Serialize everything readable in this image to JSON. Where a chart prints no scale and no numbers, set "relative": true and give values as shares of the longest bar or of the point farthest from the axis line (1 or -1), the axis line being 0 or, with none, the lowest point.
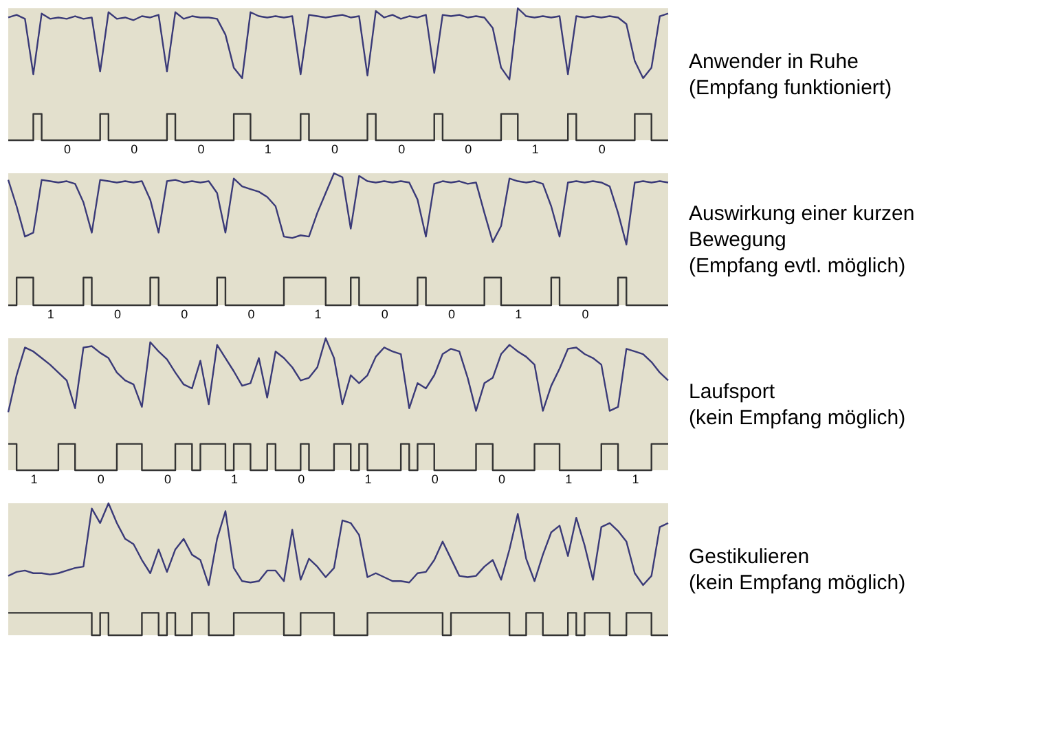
{
  "chart_data": [
    {
      "type": "line",
      "relative": true,
      "annotations": [
        "Anwender in Ruhe",
        "(Empfang funktioniert)"
      ],
      "categories": [
        null,
        null,
        null,
        null,
        null,
        null,
        null,
        "0",
        null,
        null,
        null,
        null,
        null,
        null,
        null,
        "0",
        null,
        null,
        null,
        null,
        null,
        null,
        null,
        "0",
        null,
        null,
        null,
        null,
        null,
        null,
        null,
        "1",
        null,
        null,
        null,
        null,
        null,
        null,
        null,
        "0",
        null,
        null,
        null,
        null,
        null,
        null,
        null,
        "0",
        null,
        null,
        null,
        null,
        null,
        null,
        null,
        "0",
        null,
        null,
        null,
        null,
        null,
        null,
        null,
        "1",
        null,
        null,
        null,
        null,
        null,
        null,
        null,
        "0",
        null,
        null,
        null,
        null,
        null,
        null,
        null,
        null
      ],
      "series": [
        {
          "color": "#3a3a78",
          "values": [
            0.93,
            0.95,
            0.92,
            0.5,
            0.96,
            0.92,
            0.93,
            0.92,
            0.94,
            0.92,
            0.93,
            0.52,
            0.97,
            0.92,
            0.93,
            0.91,
            0.94,
            0.93,
            0.95,
            0.52,
            0.97,
            0.92,
            0.94,
            0.93,
            0.93,
            0.92,
            0.8,
            0.55,
            0.47,
            0.97,
            0.94,
            0.93,
            0.94,
            0.93,
            0.94,
            0.5,
            0.95,
            0.94,
            0.93,
            0.94,
            0.95,
            0.93,
            0.94,
            0.49,
            0.98,
            0.93,
            0.95,
            0.92,
            0.94,
            0.93,
            0.95,
            0.51,
            0.95,
            0.94,
            0.95,
            0.93,
            0.94,
            0.93,
            0.85,
            0.55,
            0.46,
            1.0,
            0.94,
            0.93,
            0.94,
            0.93,
            0.94,
            0.5,
            0.94,
            0.93,
            0.94,
            0.93,
            0.94,
            0.93,
            0.88,
            0.6,
            0.47,
            0.55,
            0.94,
            0.96
          ]
        },
        {
          "type": "step",
          "color": "#333333",
          "values": [
            0,
            0,
            0,
            0.2,
            0,
            0,
            0,
            0,
            0,
            0,
            0,
            0.2,
            0,
            0,
            0,
            0,
            0,
            0,
            0,
            0.2,
            0,
            0,
            0,
            0,
            0,
            0,
            0,
            0.2,
            0.2,
            0,
            0,
            0,
            0,
            0,
            0,
            0.2,
            0,
            0,
            0,
            0,
            0,
            0,
            0,
            0.2,
            0,
            0,
            0,
            0,
            0,
            0,
            0,
            0.2,
            0,
            0,
            0,
            0,
            0,
            0,
            0,
            0.2,
            0.2,
            0,
            0,
            0,
            0,
            0,
            0,
            0.2,
            0,
            0,
            0,
            0,
            0,
            0,
            0,
            0.2,
            0.2,
            0,
            0,
            0
          ]
        }
      ]
    },
    {
      "type": "line",
      "relative": true,
      "annotations": [
        "Auswirkung einer kurzen",
        "Bewegung",
        "(Empfang evtl. möglich)"
      ],
      "categories": [
        null,
        null,
        null,
        null,
        null,
        "1",
        null,
        null,
        null,
        null,
        null,
        null,
        null,
        "0",
        null,
        null,
        null,
        null,
        null,
        null,
        null,
        "0",
        null,
        null,
        null,
        null,
        null,
        null,
        null,
        "0",
        null,
        null,
        null,
        null,
        null,
        null,
        null,
        "1",
        null,
        null,
        null,
        null,
        null,
        null,
        null,
        "0",
        null,
        null,
        null,
        null,
        null,
        null,
        null,
        "0",
        null,
        null,
        null,
        null,
        null,
        null,
        null,
        "1",
        null,
        null,
        null,
        null,
        null,
        null,
        null,
        "0",
        null,
        null,
        null,
        null,
        null,
        null,
        null,
        null,
        null,
        null
      ],
      "series": [
        {
          "color": "#3a3a78",
          "values": [
            0.95,
            0.75,
            0.52,
            0.55,
            0.95,
            0.94,
            0.93,
            0.94,
            0.92,
            0.78,
            0.55,
            0.95,
            0.94,
            0.93,
            0.94,
            0.93,
            0.94,
            0.8,
            0.55,
            0.94,
            0.95,
            0.93,
            0.94,
            0.93,
            0.94,
            0.85,
            0.55,
            0.96,
            0.9,
            0.88,
            0.86,
            0.82,
            0.75,
            0.52,
            0.51,
            0.53,
            0.52,
            0.7,
            0.85,
            1.0,
            0.97,
            0.58,
            0.98,
            0.94,
            0.93,
            0.94,
            0.93,
            0.94,
            0.93,
            0.8,
            0.52,
            0.92,
            0.94,
            0.93,
            0.94,
            0.92,
            0.93,
            0.7,
            0.48,
            0.6,
            0.96,
            0.94,
            0.93,
            0.94,
            0.92,
            0.75,
            0.52,
            0.93,
            0.94,
            0.93,
            0.94,
            0.93,
            0.9,
            0.7,
            0.46,
            0.93,
            0.94,
            0.93,
            0.94,
            0.93
          ]
        },
        {
          "type": "step",
          "color": "#333333",
          "values": [
            0,
            0.21,
            0.21,
            0,
            0,
            0,
            0,
            0,
            0,
            0.21,
            0,
            0,
            0,
            0,
            0,
            0,
            0,
            0.21,
            0,
            0,
            0,
            0,
            0,
            0,
            0,
            0.21,
            0,
            0,
            0,
            0,
            0,
            0,
            0,
            0.21,
            0.21,
            0.21,
            0.21,
            0.21,
            0,
            0,
            0,
            0.21,
            0,
            0,
            0,
            0,
            0,
            0,
            0,
            0.21,
            0,
            0,
            0,
            0,
            0,
            0,
            0,
            0.21,
            0.21,
            0,
            0,
            0,
            0,
            0,
            0,
            0.21,
            0,
            0,
            0,
            0,
            0,
            0,
            0,
            0.21,
            0,
            0,
            0,
            0,
            0,
            0
          ]
        }
      ]
    },
    {
      "type": "line",
      "relative": true,
      "annotations": [
        "Laufsport",
        "(kein Empfang möglich)"
      ],
      "categories": [
        null,
        null,
        null,
        "1",
        null,
        null,
        null,
        null,
        null,
        null,
        null,
        "0",
        null,
        null,
        null,
        null,
        null,
        null,
        null,
        "0",
        null,
        null,
        null,
        null,
        null,
        null,
        null,
        "1",
        null,
        null,
        null,
        null,
        null,
        null,
        null,
        "0",
        null,
        null,
        null,
        null,
        null,
        null,
        null,
        "1",
        null,
        null,
        null,
        null,
        null,
        null,
        null,
        "0",
        null,
        null,
        null,
        null,
        null,
        null,
        null,
        "0",
        null,
        null,
        null,
        null,
        null,
        null,
        null,
        "1",
        null,
        null,
        null,
        null,
        null,
        null,
        null,
        "1",
        null,
        null,
        null,
        null
      ],
      "series": [
        {
          "color": "#3a3a78",
          "values": [
            0.44,
            0.72,
            0.93,
            0.9,
            0.85,
            0.8,
            0.74,
            0.68,
            0.47,
            0.93,
            0.94,
            0.89,
            0.85,
            0.74,
            0.68,
            0.65,
            0.48,
            0.97,
            0.9,
            0.84,
            0.74,
            0.65,
            0.62,
            0.83,
            0.5,
            0.95,
            0.85,
            0.75,
            0.64,
            0.66,
            0.85,
            0.55,
            0.9,
            0.85,
            0.78,
            0.68,
            0.7,
            0.78,
            1.0,
            0.85,
            0.5,
            0.72,
            0.66,
            0.72,
            0.86,
            0.93,
            0.9,
            0.88,
            0.47,
            0.66,
            0.62,
            0.72,
            0.88,
            0.92,
            0.9,
            0.7,
            0.45,
            0.66,
            0.7,
            0.88,
            0.95,
            0.9,
            0.86,
            0.8,
            0.45,
            0.64,
            0.77,
            0.92,
            0.93,
            0.88,
            0.85,
            0.8,
            0.45,
            0.48,
            0.92,
            0.9,
            0.88,
            0.82,
            0.74,
            0.68
          ]
        },
        {
          "type": "step",
          "color": "#333333",
          "values": [
            0.2,
            0,
            0,
            0,
            0,
            0,
            0.2,
            0.2,
            0,
            0,
            0,
            0,
            0,
            0.2,
            0.2,
            0.2,
            0,
            0,
            0,
            0,
            0.2,
            0.2,
            0,
            0.2,
            0.2,
            0.2,
            0,
            0.2,
            0.2,
            0,
            0,
            0.2,
            0,
            0,
            0,
            0.2,
            0,
            0,
            0,
            0.2,
            0.2,
            0,
            0.2,
            0,
            0,
            0,
            0,
            0.2,
            0,
            0.2,
            0.2,
            0,
            0,
            0,
            0,
            0,
            0.2,
            0.2,
            0,
            0,
            0,
            0,
            0,
            0.2,
            0.2,
            0.2,
            0,
            0,
            0,
            0,
            0,
            0.2,
            0.2,
            0,
            0,
            0,
            0,
            0.2,
            0.2,
            0.2
          ]
        }
      ]
    },
    {
      "type": "line",
      "relative": true,
      "annotations": [
        "Gestikulieren",
        "(kein Empfang möglich)"
      ],
      "categories": [
        null,
        null,
        null,
        null,
        null,
        null,
        null,
        null,
        null,
        null,
        null,
        null,
        null,
        null,
        null,
        null,
        null,
        null,
        null,
        null,
        null,
        null,
        null,
        null,
        null,
        null,
        null,
        null,
        null,
        null,
        null,
        null,
        null,
        null,
        null,
        null,
        null,
        null,
        null,
        null,
        null,
        null,
        null,
        null,
        null,
        null,
        null,
        null,
        null,
        null,
        null,
        null,
        null,
        null,
        null,
        null,
        null,
        null,
        null,
        null,
        null,
        null,
        null,
        null,
        null,
        null,
        null,
        null,
        null,
        null,
        null,
        null,
        null,
        null,
        null,
        null,
        null,
        null,
        null,
        null
      ],
      "series": [
        {
          "color": "#3a3a78",
          "values": [
            0.45,
            0.48,
            0.49,
            0.47,
            0.47,
            0.46,
            0.47,
            0.49,
            0.51,
            0.52,
            0.96,
            0.85,
            1.0,
            0.85,
            0.73,
            0.69,
            0.57,
            0.47,
            0.65,
            0.48,
            0.65,
            0.73,
            0.61,
            0.57,
            0.38,
            0.73,
            0.94,
            0.51,
            0.41,
            0.4,
            0.41,
            0.49,
            0.49,
            0.41,
            0.8,
            0.42,
            0.58,
            0.52,
            0.44,
            0.51,
            0.87,
            0.85,
            0.76,
            0.44,
            0.47,
            0.44,
            0.41,
            0.41,
            0.4,
            0.47,
            0.48,
            0.57,
            0.71,
            0.58,
            0.45,
            0.44,
            0.45,
            0.52,
            0.57,
            0.42,
            0.65,
            0.92,
            0.58,
            0.41,
            0.61,
            0.78,
            0.83,
            0.6,
            0.89,
            0.68,
            0.42,
            0.82,
            0.85,
            0.79,
            0.71,
            0.47,
            0.38,
            0.45,
            0.82,
            0.85
          ]
        },
        {
          "type": "step",
          "color": "#333333",
          "values": [
            0.17,
            0.17,
            0.17,
            0.17,
            0.17,
            0.17,
            0.17,
            0.17,
            0.17,
            0.17,
            0,
            0.17,
            0,
            0,
            0,
            0,
            0.17,
            0.17,
            0,
            0.17,
            0,
            0,
            0.17,
            0.17,
            0,
            0,
            0,
            0.17,
            0.17,
            0.17,
            0.17,
            0.17,
            0.17,
            0,
            0,
            0.17,
            0.17,
            0.17,
            0.17,
            0,
            0,
            0,
            0,
            0.17,
            0.17,
            0.17,
            0.17,
            0.17,
            0.17,
            0.17,
            0.17,
            0.17,
            0,
            0.17,
            0.17,
            0.17,
            0.17,
            0.17,
            0.17,
            0.17,
            0,
            0,
            0.17,
            0.17,
            0,
            0,
            0,
            0.17,
            0,
            0.17,
            0.17,
            0.17,
            0,
            0,
            0.17,
            0.17,
            0.17,
            0,
            0,
            0
          ]
        }
      ]
    }
  ]
}
